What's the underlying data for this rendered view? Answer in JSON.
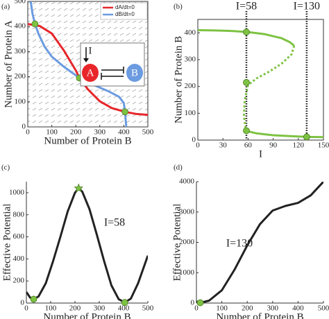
{
  "chart_data": [
    {
      "type": "line",
      "label": "(a)",
      "xlabel": "Number of Protein B",
      "ylabel": "Number of Protein A",
      "box": true,
      "vector_field": true,
      "xlim": [
        0,
        500
      ],
      "ylim": [
        0,
        500
      ],
      "xticks": [
        0,
        100,
        200,
        300,
        400,
        500
      ],
      "yticks": [
        0,
        100,
        200,
        300,
        400,
        500
      ],
      "series": [
        {
          "name": "dA/dt=0",
          "color": "#e8262a",
          "x": [
            0,
            50,
            100,
            150,
            200,
            215,
            250,
            300,
            350,
            405,
            450,
            500
          ],
          "values": [
            410,
            402,
            372,
            305,
            225,
            195,
            150,
            102,
            75,
            60,
            52,
            48
          ]
        },
        {
          "name": "dB/dt=0",
          "color": "#6b9be0",
          "x": [
            12,
            20,
            30,
            45,
            70,
            100,
            150,
            215,
            280,
            340,
            380,
            400,
            405,
            410
          ],
          "values": [
            500,
            450,
            410,
            370,
            320,
            280,
            240,
            195,
            165,
            140,
            120,
            95,
            60,
            0
          ]
        },
        {
          "mode": "markers",
          "color": "#7dc242",
          "x": [
            30,
            215,
            405
          ],
          "values": [
            410,
            195,
            60
          ]
        }
      ],
      "inset": {
        "input": "I",
        "nodes": [
          "A",
          "B"
        ]
      }
    },
    {
      "type": "line",
      "label": "(b)",
      "xlabel": "I",
      "ylabel": "Number of Protein B",
      "box": true,
      "xlim": [
        0,
        150
      ],
      "ylim": [
        0,
        450
      ],
      "xticks": [
        0,
        30,
        60,
        90,
        120,
        150
      ],
      "yticks": [
        0,
        100,
        200,
        300,
        400
      ],
      "series": [
        {
          "color": "#7dc242",
          "x": [
            0,
            20,
            40,
            60,
            80,
            100,
            110,
            115
          ],
          "values": [
            410,
            409,
            407,
            403,
            395,
            380,
            365,
            352
          ]
        },
        {
          "color": "#7dc242",
          "dash": true,
          "x": [
            115,
            112,
            100,
            85,
            70,
            60,
            56,
            55,
            57
          ],
          "values": [
            352,
            320,
            285,
            255,
            230,
            205,
            150,
            90,
            45
          ]
        },
        {
          "color": "#7dc242",
          "x": [
            57,
            70,
            90,
            110,
            130,
            150
          ],
          "values": [
            35,
            25,
            18,
            15,
            12,
            11
          ]
        },
        {
          "mode": "markers",
          "color": "#7dc242",
          "x": [
            58,
            58,
            58,
            130
          ],
          "values": [
            403,
            215,
            35,
            12
          ]
        }
      ],
      "vlines": [
        {
          "label": "I=58",
          "x": 58
        },
        {
          "label": "I=130",
          "x": 130
        }
      ]
    },
    {
      "type": "line",
      "label": "(c)",
      "xlabel": "Number of Protein B",
      "ylabel": "Effective Potential",
      "annotation": "I=58",
      "xlim": [
        0,
        500
      ],
      "ylim": [
        0,
        1100
      ],
      "xticks": [
        0,
        100,
        200,
        300,
        400,
        500
      ],
      "yticks": [
        0,
        200,
        400,
        600,
        800,
        1000
      ],
      "series": [
        {
          "color": "#222222",
          "x": [
            0,
            15,
            30,
            50,
            80,
            110,
            140,
            170,
            200,
            215,
            230,
            260,
            290,
            320,
            350,
            380,
            405,
            430,
            460,
            500
          ],
          "values": [
            100,
            50,
            35,
            60,
            180,
            380,
            600,
            830,
            1000,
            1040,
            1010,
            850,
            620,
            380,
            160,
            35,
            5,
            40,
            180,
            430
          ]
        },
        {
          "mode": "markers",
          "color": "#7dc242",
          "x": [
            30,
            405
          ],
          "values": [
            35,
            5
          ]
        },
        {
          "mode": "markers",
          "marker": "star",
          "color": "#7dc242",
          "x": [
            215
          ],
          "values": [
            1040
          ]
        }
      ]
    },
    {
      "type": "line",
      "label": "(d)",
      "xlabel": "Number of Protein B",
      "ylabel": "Effective Potential",
      "annotation": "I=130",
      "xlim": [
        0,
        500
      ],
      "ylim": [
        0,
        4000
      ],
      "xticks": [
        0,
        100,
        200,
        300,
        400,
        500
      ],
      "yticks": [
        0,
        1000,
        2000,
        3000,
        4000
      ],
      "series": [
        {
          "color": "#222222",
          "x": [
            0,
            15,
            50,
            100,
            150,
            200,
            250,
            300,
            350,
            400,
            450,
            500
          ],
          "values": [
            50,
            10,
            80,
            420,
            1100,
            1900,
            2600,
            3050,
            3200,
            3300,
            3550,
            4000
          ]
        },
        {
          "mode": "markers",
          "color": "#7dc242",
          "x": [
            15
          ],
          "values": [
            10
          ]
        }
      ]
    }
  ]
}
